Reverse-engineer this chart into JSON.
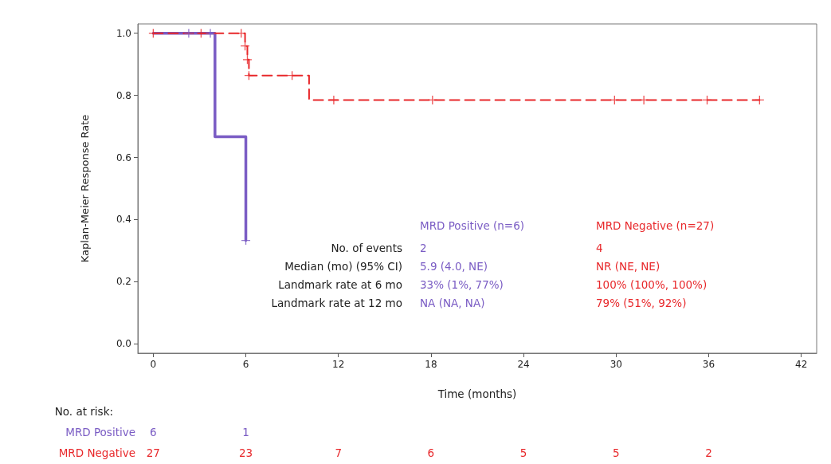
{
  "chart_data": {
    "type": "step",
    "xlabel": "Time (months)",
    "ylabel": "Kaplan-Meier Response Rate",
    "xlim": [
      -1,
      43
    ],
    "xticks": [
      0,
      6,
      12,
      18,
      24,
      30,
      36,
      42
    ],
    "ylim": [
      -0.03,
      1.03
    ],
    "yticks": [
      {
        "value": 0,
        "label": "0.0"
      },
      {
        "value": 0.2,
        "label": "0.2"
      },
      {
        "value": 0.4,
        "label": "0.4"
      },
      {
        "value": 0.6,
        "label": "0.6"
      },
      {
        "value": 0.8,
        "label": "0.8"
      },
      {
        "value": 1,
        "label": "1.0"
      }
    ],
    "grid": false,
    "legend": false,
    "series": [
      {
        "name": "MRD Positive",
        "color": "#7a5cc4",
        "line_style": "solid",
        "marker": "none",
        "x": [
          0,
          4.0,
          6.0
        ],
        "values": [
          1,
          0.667,
          0.333
        ]
      },
      {
        "name": "MRD Negative",
        "color": "#e8282b",
        "line_style": "dashed",
        "marker": "none",
        "x": [
          0,
          5.95,
          6.1,
          6.2,
          10.1,
          39.3
        ],
        "values": [
          1,
          0.959,
          0.915,
          0.864,
          0.785,
          0.785
        ]
      },
      {
        "type": "scatter",
        "color": "#7a5cc4",
        "marker": "cross",
        "x": [
          2.3,
          3.7,
          6.0
        ],
        "values": [
          1,
          1,
          0.333
        ]
      },
      {
        "type": "scatter",
        "color": "#e8282b",
        "marker": "cross",
        "x": [
          0,
          3.1,
          5.7,
          5.95,
          6.1,
          6.2,
          9.0,
          11.7,
          18.1,
          29.9,
          31.8,
          35.9,
          39.3
        ],
        "values": [
          1,
          1,
          1,
          0.959,
          0.915,
          0.864,
          0.864,
          0.785,
          0.785,
          0.785,
          0.785,
          0.785,
          0.785
        ]
      }
    ],
    "annotations": [
      "MRD Positive (n=6)",
      "MRD Negative (n=27)",
      "No. of events",
      "2",
      "4",
      "Median (mo) (95% CI)",
      "5.9 (4.0, NE)",
      "NR (NE, NE)",
      "Landmark rate at 6 mo",
      "33% (1%, 77%)",
      "100% (100%, 100%)",
      "Landmark rate at 12 mo",
      "NA (NA, NA)",
      "79% (51%, 92%)",
      "No. at risk:",
      "6",
      "1",
      "27",
      "23",
      "7",
      "6",
      "5",
      "5",
      "2"
    ]
  }
}
